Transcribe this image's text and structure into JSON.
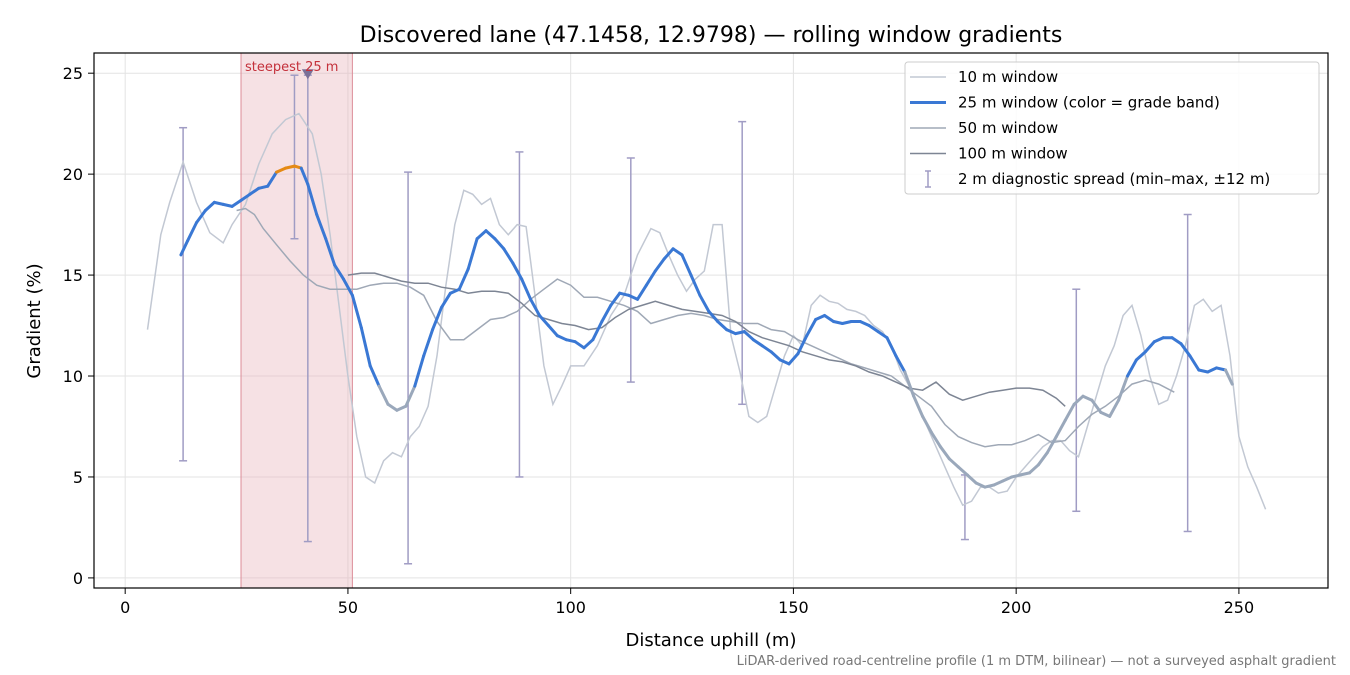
{
  "chart_data": {
    "type": "line",
    "title": "Discovered lane (47.1458, 12.9798) — rolling window gradients",
    "xlabel": "Distance uphill (m)",
    "ylabel": "Gradient (%)",
    "xlim": [
      -7,
      270
    ],
    "ylim": [
      -0.5,
      26
    ],
    "xticks": [
      0,
      50,
      100,
      150,
      200,
      250
    ],
    "yticks": [
      0,
      5,
      10,
      15,
      20,
      25
    ],
    "grid": true,
    "legend_position": "upper right",
    "footnote": "LiDAR-derived road-centreline profile (1 m DTM, bilinear) — not a surveyed asphalt gradient",
    "steepest_segment": {
      "label": "steepest 25 m",
      "x_start": 26,
      "x_end": 51,
      "marker_x": 41,
      "marker_y": 25
    },
    "series": [
      {
        "name": "10 m window",
        "color": "#c2c8d3",
        "x": [
          5,
          8,
          10,
          13,
          16,
          19,
          22,
          24,
          27,
          30,
          33,
          36,
          39,
          42,
          44,
          46,
          48,
          50,
          52,
          54,
          56,
          58,
          60,
          62,
          64,
          66,
          68,
          70,
          72,
          74,
          76,
          78,
          80,
          82,
          84,
          86,
          88,
          90,
          92,
          94,
          96,
          98,
          100,
          103,
          106,
          109,
          112,
          115,
          118,
          120,
          122,
          124,
          126,
          128,
          130,
          132,
          134,
          136,
          138,
          140,
          142,
          144,
          146,
          148,
          150,
          152,
          154,
          156,
          158,
          160,
          162,
          164,
          166,
          168,
          170,
          172,
          174,
          176,
          178,
          180,
          182,
          184,
          186,
          188,
          190,
          192,
          194,
          196,
          198,
          200,
          202,
          204,
          206,
          208,
          210,
          212,
          214,
          216,
          218,
          220,
          222,
          224,
          226,
          228,
          230,
          232,
          234,
          236,
          238,
          240,
          242,
          244,
          246,
          248,
          250,
          252,
          254,
          256
        ],
        "values": [
          12.3,
          17.0,
          18.6,
          20.6,
          18.6,
          17.1,
          16.6,
          17.5,
          18.5,
          20.5,
          22.0,
          22.7,
          23.0,
          22.0,
          20.0,
          17.0,
          13.5,
          10.0,
          7.0,
          5.0,
          4.7,
          5.8,
          6.2,
          6.0,
          7.0,
          7.5,
          8.5,
          11.0,
          14.5,
          17.5,
          19.2,
          19.0,
          18.5,
          18.8,
          17.5,
          17.0,
          17.5,
          17.4,
          14.0,
          10.5,
          8.6,
          9.5,
          10.5,
          10.5,
          11.5,
          13.0,
          14.0,
          16.0,
          17.3,
          17.1,
          16.0,
          15.0,
          14.2,
          14.8,
          15.2,
          17.5,
          17.5,
          12.0,
          10.2,
          8.0,
          7.7,
          8.0,
          9.5,
          11.0,
          12.0,
          11.5,
          13.5,
          14.0,
          13.7,
          13.6,
          13.3,
          13.2,
          13.0,
          12.5,
          12.2,
          11.5,
          10.3,
          9.5,
          8.5,
          7.5,
          6.5,
          5.5,
          4.5,
          3.6,
          3.8,
          4.5,
          4.5,
          4.2,
          4.3,
          5.0,
          5.5,
          6.0,
          6.5,
          6.8,
          6.8,
          6.3,
          6.0,
          7.5,
          9.0,
          10.5,
          11.5,
          13.0,
          13.5,
          12.0,
          10.0,
          8.6,
          8.8,
          10.0,
          11.5,
          13.5,
          13.8,
          13.2,
          13.5,
          11.0,
          7.0,
          5.5,
          4.5,
          3.4
        ]
      },
      {
        "name": "25 m window (color = grade band)",
        "color": "#3a78d4",
        "highlight_color": "#e58a14",
        "muted_color": "#9aa8bb",
        "x": [
          12.5,
          14,
          16,
          18,
          20,
          22,
          24,
          26,
          28,
          30,
          32,
          34,
          36,
          38,
          39.5,
          41,
          43,
          45,
          47,
          49,
          51,
          53,
          55,
          57,
          59,
          61,
          63,
          65,
          67,
          69,
          71,
          73,
          75,
          77,
          79,
          81,
          83,
          85,
          87,
          89,
          91,
          93,
          95,
          97,
          99,
          101,
          103,
          105,
          107,
          109,
          111,
          113,
          115,
          117,
          119,
          121,
          123,
          125,
          127,
          129,
          131,
          133,
          135,
          137,
          139,
          141,
          143,
          145,
          147,
          149,
          151,
          153,
          155,
          157,
          159,
          161,
          163,
          165,
          167,
          169,
          171,
          173,
          175,
          177,
          179,
          181,
          183,
          185,
          187,
          189,
          191,
          193,
          195,
          197,
          199,
          201,
          203,
          205,
          207,
          209,
          211,
          213,
          215,
          217,
          219,
          221,
          223,
          225,
          227,
          229,
          231,
          233,
          235,
          237,
          239,
          241,
          243,
          245,
          247,
          248.5
        ],
        "values": [
          16.0,
          16.7,
          17.6,
          18.2,
          18.6,
          18.5,
          18.4,
          18.7,
          19.0,
          19.3,
          19.4,
          20.1,
          20.3,
          20.4,
          20.3,
          19.5,
          18.0,
          16.8,
          15.5,
          14.8,
          14.0,
          12.4,
          10.5,
          9.5,
          8.6,
          8.3,
          8.5,
          9.5,
          11.0,
          12.3,
          13.4,
          14.1,
          14.3,
          15.3,
          16.8,
          17.2,
          16.8,
          16.3,
          15.6,
          14.8,
          13.8,
          13.0,
          12.5,
          12.0,
          11.8,
          11.7,
          11.4,
          11.8,
          12.7,
          13.5,
          14.1,
          14.0,
          13.8,
          14.5,
          15.2,
          15.8,
          16.3,
          16.0,
          15.0,
          14.0,
          13.2,
          12.7,
          12.3,
          12.1,
          12.2,
          11.8,
          11.5,
          11.2,
          10.8,
          10.6,
          11.1,
          12.0,
          12.8,
          13.0,
          12.7,
          12.6,
          12.7,
          12.7,
          12.5,
          12.2,
          11.9,
          11.0,
          10.2,
          9.0,
          8.0,
          7.2,
          6.5,
          5.9,
          5.5,
          5.1,
          4.7,
          4.5,
          4.6,
          4.8,
          5.0,
          5.1,
          5.2,
          5.6,
          6.2,
          7.0,
          7.8,
          8.6,
          9.0,
          8.8,
          8.2,
          8.0,
          8.8,
          10.0,
          10.8,
          11.2,
          11.7,
          11.9,
          11.9,
          11.6,
          11.0,
          10.3,
          10.2,
          10.4,
          10.3,
          9.6
        ]
      },
      {
        "name": "50 m window",
        "color": "#9fa8b6",
        "x": [
          25,
          27,
          29,
          31,
          34,
          37,
          40,
          43,
          46,
          49,
          52,
          55,
          58,
          61,
          64,
          67,
          70,
          73,
          76,
          79,
          82,
          85,
          88,
          91,
          94,
          97,
          100,
          103,
          106,
          109,
          112,
          115,
          118,
          121,
          124,
          127,
          130,
          133,
          136,
          139,
          142,
          145,
          148,
          151,
          154,
          157,
          160,
          163,
          166,
          169,
          172,
          175,
          178,
          181,
          184,
          187,
          190,
          193,
          196,
          199,
          202,
          205,
          208,
          211,
          214,
          217,
          220,
          223,
          226,
          229,
          232,
          235.5
        ],
        "values": [
          18.2,
          18.3,
          18.0,
          17.3,
          16.5,
          15.7,
          15.0,
          14.5,
          14.3,
          14.3,
          14.3,
          14.5,
          14.6,
          14.6,
          14.4,
          14.0,
          12.7,
          11.8,
          11.8,
          12.3,
          12.8,
          12.9,
          13.2,
          13.8,
          14.3,
          14.8,
          14.5,
          13.9,
          13.9,
          13.7,
          13.5,
          13.2,
          12.6,
          12.8,
          13.0,
          13.1,
          13.0,
          12.8,
          12.7,
          12.6,
          12.6,
          12.3,
          12.2,
          11.8,
          11.5,
          11.2,
          10.9,
          10.6,
          10.4,
          10.2,
          10.0,
          9.5,
          9.0,
          8.5,
          7.6,
          7.0,
          6.7,
          6.5,
          6.6,
          6.6,
          6.8,
          7.1,
          6.7,
          6.8,
          7.5,
          8.1,
          8.5,
          9.0,
          9.6,
          9.8,
          9.6,
          9.2
        ]
      },
      {
        "name": "100 m window",
        "color": "#7d8594",
        "x": [
          50,
          53,
          56,
          59,
          62,
          65,
          68,
          71,
          74,
          77,
          80,
          83,
          86,
          89,
          92,
          95,
          98,
          101,
          104,
          107,
          110,
          113,
          116,
          119,
          122,
          125,
          128,
          131,
          134,
          137,
          140,
          143,
          146,
          149,
          152,
          155,
          158,
          161,
          164,
          167,
          170,
          173,
          176,
          179,
          182,
          185,
          188,
          191,
          194,
          197,
          200,
          203,
          206,
          209,
          211
        ],
        "values": [
          15.0,
          15.1,
          15.1,
          14.9,
          14.7,
          14.6,
          14.6,
          14.4,
          14.3,
          14.1,
          14.2,
          14.2,
          14.1,
          13.6,
          13.0,
          12.8,
          12.6,
          12.5,
          12.3,
          12.4,
          12.9,
          13.3,
          13.5,
          13.7,
          13.5,
          13.3,
          13.2,
          13.1,
          13.0,
          12.7,
          12.2,
          11.9,
          11.7,
          11.5,
          11.2,
          11.0,
          10.8,
          10.7,
          10.5,
          10.2,
          10.0,
          9.7,
          9.4,
          9.3,
          9.7,
          9.1,
          8.8,
          9.0,
          9.2,
          9.3,
          9.4,
          9.4,
          9.3,
          8.9,
          8.5
        ]
      }
    ],
    "errorbars": {
      "name": "2 m diagnostic spread (min–max, ±12 m)",
      "color": "#a09cc4",
      "points": [
        {
          "x": 13,
          "min": 5.8,
          "max": 22.3
        },
        {
          "x": 38,
          "min": 16.8,
          "max": 24.9
        },
        {
          "x": 41,
          "min": 1.8,
          "max": 24.9
        },
        {
          "x": 63.5,
          "min": 0.7,
          "max": 20.1
        },
        {
          "x": 88.5,
          "min": 5.0,
          "max": 21.1
        },
        {
          "x": 113.5,
          "min": 9.7,
          "max": 20.8
        },
        {
          "x": 138.5,
          "min": 8.6,
          "max": 22.6
        },
        {
          "x": 188.5,
          "min": 1.9,
          "max": 5.1
        },
        {
          "x": 213.5,
          "min": 3.3,
          "max": 14.3
        },
        {
          "x": 238.5,
          "min": 2.3,
          "max": 18.0
        }
      ]
    }
  }
}
